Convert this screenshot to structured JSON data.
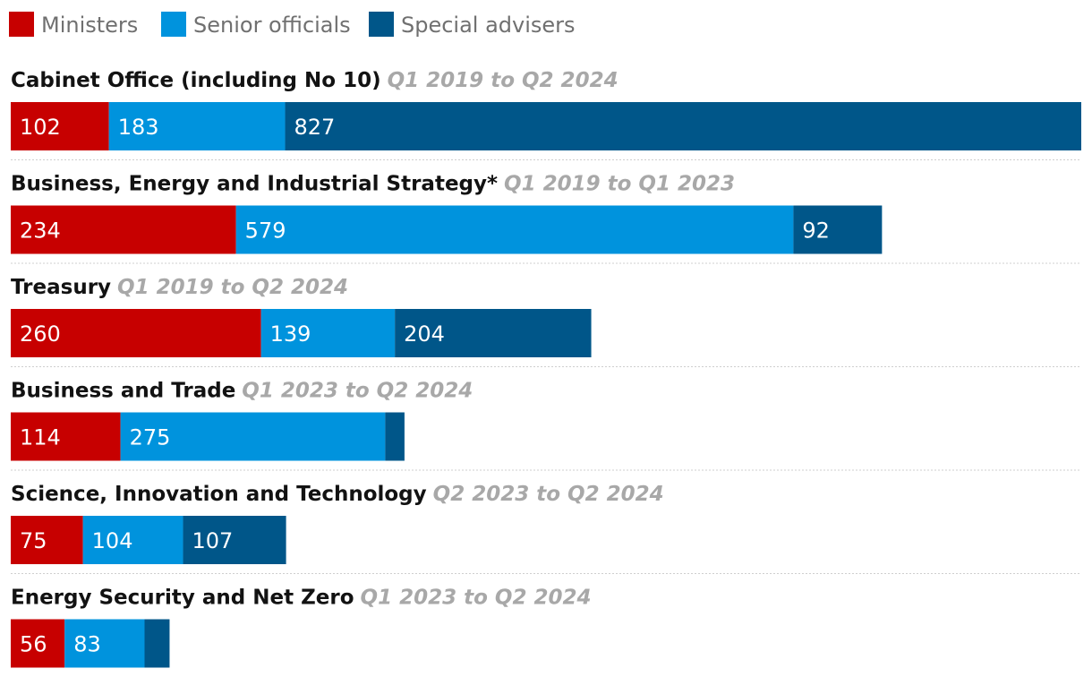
{
  "chart_data": {
    "type": "bar",
    "orientation": "horizontal",
    "stacked": true,
    "legend_placement": "top-left",
    "series": [
      {
        "name": "Ministers",
        "color": "#c70000"
      },
      {
        "name": "Senior officials",
        "color": "#0093dd"
      },
      {
        "name": "Special advisers",
        "color": "#005689"
      }
    ],
    "departments": [
      {
        "name": "Cabinet Office (including No 10)",
        "period": "Q1 2019 to Q2 2024",
        "values": [
          102,
          183,
          827
        ],
        "labels": [
          "102",
          "183",
          "827"
        ]
      },
      {
        "name": "Business, Energy and Industrial Strategy*",
        "period": "Q1 2019 to Q1 2023",
        "values": [
          234,
          579,
          92
        ],
        "labels": [
          "234",
          "579",
          "92"
        ]
      },
      {
        "name": "Treasury",
        "period": "Q1 2019 to Q2 2024",
        "values": [
          260,
          139,
          204
        ],
        "labels": [
          "260",
          "139",
          "204"
        ]
      },
      {
        "name": "Business and Trade",
        "period": "Q1 2023 to Q2 2024",
        "values": [
          114,
          275,
          20
        ],
        "labels": [
          "114",
          "275",
          ""
        ]
      },
      {
        "name": "Science, Innovation and Technology",
        "period": "Q2 2023 to Q2 2024",
        "values": [
          75,
          104,
          107
        ],
        "labels": [
          "75",
          "104",
          "107"
        ]
      },
      {
        "name": "Energy Security and Net Zero",
        "period": "Q1 2023 to Q2 2024",
        "values": [
          56,
          83,
          26
        ],
        "labels": [
          "56",
          "83",
          ""
        ]
      }
    ],
    "xlim": [
      0,
      1112
    ]
  }
}
